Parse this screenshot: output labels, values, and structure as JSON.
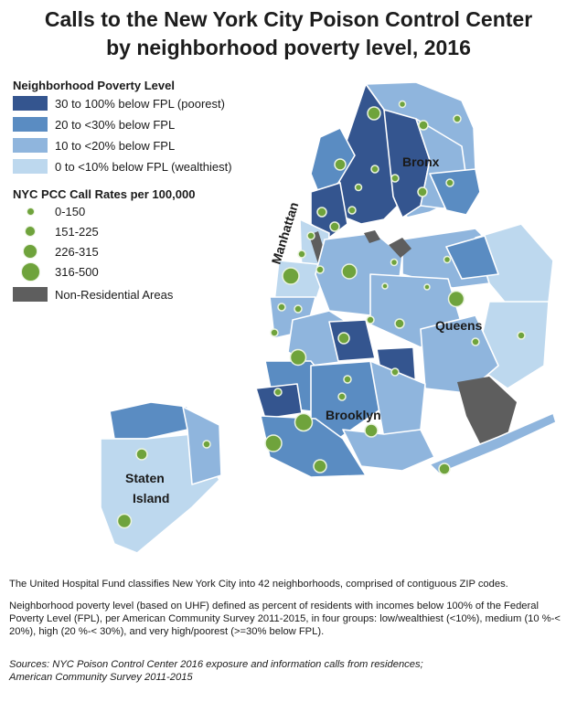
{
  "title": {
    "line1": "Calls to the New York City Poison Control Center",
    "line2": "by neighborhood poverty level, 2016"
  },
  "legend": {
    "poverty_title": "Neighborhood Poverty Level",
    "poverty_levels": [
      {
        "label": "30 to 100% below FPL (poorest)",
        "color": "#34558f"
      },
      {
        "label": "20 to <30% below FPL",
        "color": "#5a8cc2"
      },
      {
        "label": "10 to <20% below FPL",
        "color": "#8fb5dd"
      },
      {
        "label": "0 to <10% below FPL (wealthiest)",
        "color": "#bdd8ee"
      }
    ],
    "rate_title": "NYC PCC Call Rates per 100,000",
    "rate_bins": [
      {
        "label": "0-150"
      },
      {
        "label": "151-225"
      },
      {
        "label": "226-315"
      },
      {
        "label": "316-500"
      }
    ],
    "nonres_label": "Non-Residential Areas",
    "nonres_color": "#5e5e5e",
    "dot_color": "#6fa33c"
  },
  "map_labels": {
    "bronx": "Bronx",
    "manhattan": "Manhattan",
    "queens": "Queens",
    "brooklyn": "Brooklyn",
    "staten_line1": "Staten",
    "staten_line2": "Island"
  },
  "footnotes": {
    "uhf": "The United Hospital Fund classifies New York City into 42 neighborhoods, comprised of contiguous ZIP codes.",
    "poverty": "Neighborhood poverty level (based on UHF) defined as percent of residents with incomes below 100% of the Federal Poverty Level (FPL), per American Community Survey 2011-2015, in four groups: low/wealthiest (<10%), medium (10 %-< 20%), high (20 %-< 30%), and very high/poorest (>=30% below FPL).",
    "sources_line1": "Sources: NYC Poison Control Center 2016 exposure and information calls from residences;",
    "sources_line2": "American Community  Survey 2011-2015"
  }
}
